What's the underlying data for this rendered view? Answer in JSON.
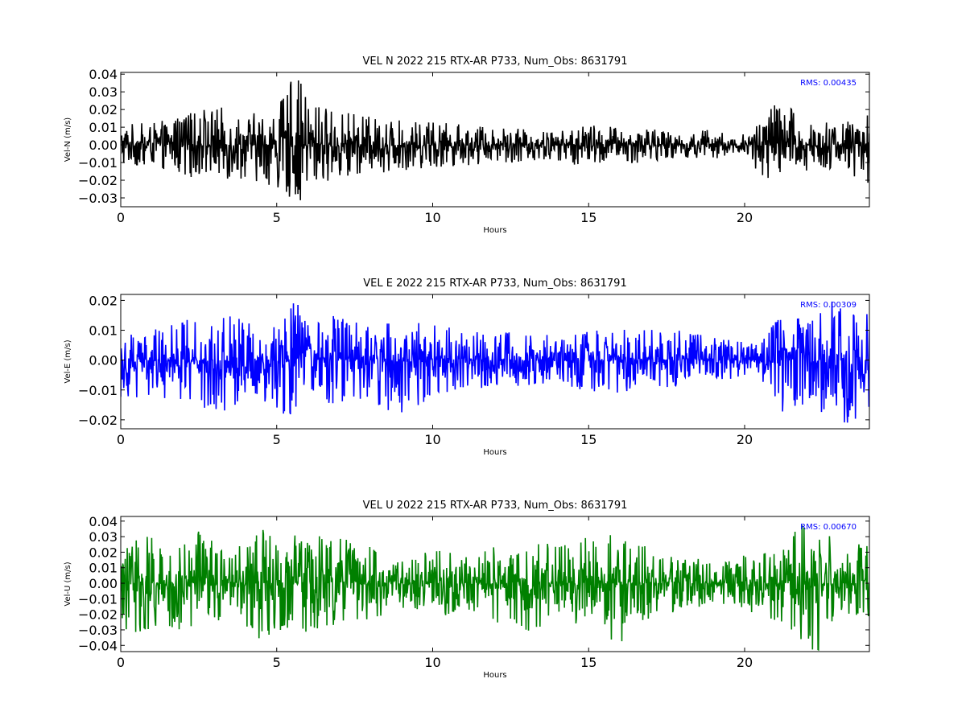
{
  "chart_data": [
    {
      "type": "line",
      "title": "VEL N 2022 215 RTX-AR  P733, Num_Obs: 8631791",
      "xlabel": "Hours",
      "ylabel": "Vel-N (m/s)",
      "xlim": [
        0,
        24
      ],
      "ylim": [
        -0.035,
        0.041
      ],
      "xticks": [
        0,
        5,
        10,
        15,
        20
      ],
      "xtick_labels": [
        "0",
        "5",
        "10",
        "15",
        "20"
      ],
      "yticks": [
        -0.03,
        -0.02,
        -0.01,
        0.0,
        0.01,
        0.02,
        0.03,
        0.04
      ],
      "ytick_labels": [
        "−0.03",
        "−0.02",
        "−0.01",
        "0.00",
        "0.01",
        "0.02",
        "0.03",
        "0.04"
      ],
      "color": "#000000",
      "annotation": "RMS:  0.00435",
      "annotation_color": "#0000ff",
      "grid": false,
      "series": [
        {
          "hours": [
            0,
            1,
            2,
            3,
            4,
            5,
            5.6,
            6,
            7,
            8,
            9,
            10,
            11,
            12,
            13,
            14,
            15,
            16,
            17,
            18,
            19,
            19.8,
            20.3,
            21,
            22,
            23,
            24
          ],
          "envelope_max": [
            0.013,
            0.012,
            0.017,
            0.022,
            0.018,
            0.02,
            0.041,
            0.027,
            0.019,
            0.016,
            0.014,
            0.013,
            0.012,
            0.01,
            0.009,
            0.008,
            0.012,
            0.01,
            0.009,
            0.007,
            0.009,
            0.004,
            0.012,
            0.028,
            0.015,
            0.012,
            0.018
          ],
          "envelope_min": [
            -0.013,
            -0.012,
            -0.017,
            -0.022,
            -0.019,
            -0.024,
            -0.035,
            -0.027,
            -0.018,
            -0.016,
            -0.015,
            -0.013,
            -0.012,
            -0.01,
            -0.01,
            -0.009,
            -0.014,
            -0.011,
            -0.01,
            -0.007,
            -0.009,
            -0.004,
            -0.014,
            -0.025,
            -0.016,
            -0.013,
            -0.029
          ]
        }
      ]
    },
    {
      "type": "line",
      "title": "VEL E 2022 215 RTX-AR  P733, Num_Obs: 8631791",
      "xlabel": "Hours",
      "ylabel": "Vel-E (m/s)",
      "xlim": [
        0,
        24
      ],
      "ylim": [
        -0.023,
        0.022
      ],
      "xticks": [
        0,
        5,
        10,
        15,
        20
      ],
      "xtick_labels": [
        "0",
        "5",
        "10",
        "15",
        "20"
      ],
      "yticks": [
        -0.02,
        -0.01,
        0.0,
        0.01,
        0.02
      ],
      "ytick_labels": [
        "−0.02",
        "−0.01",
        "0.00",
        "0.01",
        "0.02"
      ],
      "color": "#0000ff",
      "annotation": "RMS:  0.00309",
      "annotation_color": "#0000ff",
      "grid": false,
      "series": [
        {
          "hours": [
            0,
            1,
            2,
            3,
            4,
            5,
            5.5,
            6,
            7,
            8,
            9,
            10,
            11,
            12,
            13,
            14,
            15,
            16,
            17,
            18,
            19,
            20,
            20.5,
            21,
            22,
            23,
            24
          ],
          "envelope_max": [
            0.012,
            0.011,
            0.013,
            0.017,
            0.013,
            0.014,
            0.022,
            0.016,
            0.015,
            0.014,
            0.013,
            0.012,
            0.01,
            0.009,
            0.01,
            0.008,
            0.011,
            0.01,
            0.011,
            0.01,
            0.008,
            0.006,
            0.005,
            0.014,
            0.015,
            0.022,
            0.017
          ],
          "envelope_min": [
            -0.013,
            -0.012,
            -0.014,
            -0.019,
            -0.014,
            -0.016,
            -0.022,
            -0.017,
            -0.015,
            -0.014,
            -0.02,
            -0.012,
            -0.01,
            -0.009,
            -0.009,
            -0.008,
            -0.011,
            -0.011,
            -0.01,
            -0.009,
            -0.008,
            -0.006,
            -0.005,
            -0.022,
            -0.016,
            -0.023,
            -0.018
          ]
        }
      ]
    },
    {
      "type": "line",
      "title": "VEL U 2022 215 RTX-AR  P733, Num_Obs: 8631791",
      "xlabel": "Hours",
      "ylabel": "Vel-U (m/s)",
      "xlim": [
        0,
        24
      ],
      "ylim": [
        -0.044,
        0.043
      ],
      "xticks": [
        0,
        5,
        10,
        15,
        20
      ],
      "xtick_labels": [
        "0",
        "5",
        "10",
        "15",
        "20"
      ],
      "yticks": [
        -0.04,
        -0.03,
        -0.02,
        -0.01,
        0.0,
        0.01,
        0.02,
        0.03,
        0.04
      ],
      "ytick_labels": [
        "−0.04",
        "−0.03",
        "−0.02",
        "−0.01",
        "0.00",
        "0.01",
        "0.02",
        "0.03",
        "0.04"
      ],
      "color": "#008000",
      "annotation": "RMS:  0.00670",
      "annotation_color": "#0000ff",
      "grid": false,
      "series": [
        {
          "hours": [
            0,
            0.6,
            1,
            2,
            2.5,
            3,
            3.5,
            4,
            4.5,
            5,
            6,
            7,
            8,
            9,
            10,
            11,
            12,
            13,
            14,
            15,
            16,
            17,
            18,
            19,
            20,
            21,
            22,
            22.5,
            23,
            24
          ],
          "envelope_max": [
            0.03,
            0.038,
            0.03,
            0.03,
            0.035,
            0.03,
            0.018,
            0.028,
            0.035,
            0.03,
            0.032,
            0.03,
            0.024,
            0.014,
            0.022,
            0.02,
            0.024,
            0.03,
            0.024,
            0.03,
            0.036,
            0.022,
            0.02,
            0.012,
            0.018,
            0.022,
            0.043,
            0.04,
            0.02,
            0.028
          ],
          "envelope_min": [
            -0.03,
            -0.032,
            -0.03,
            -0.03,
            -0.032,
            -0.028,
            -0.016,
            -0.03,
            -0.037,
            -0.03,
            -0.032,
            -0.03,
            -0.025,
            -0.016,
            -0.022,
            -0.02,
            -0.025,
            -0.032,
            -0.024,
            -0.03,
            -0.04,
            -0.022,
            -0.02,
            -0.012,
            -0.018,
            -0.024,
            -0.043,
            -0.044,
            -0.02,
            -0.024
          ]
        }
      ]
    }
  ]
}
